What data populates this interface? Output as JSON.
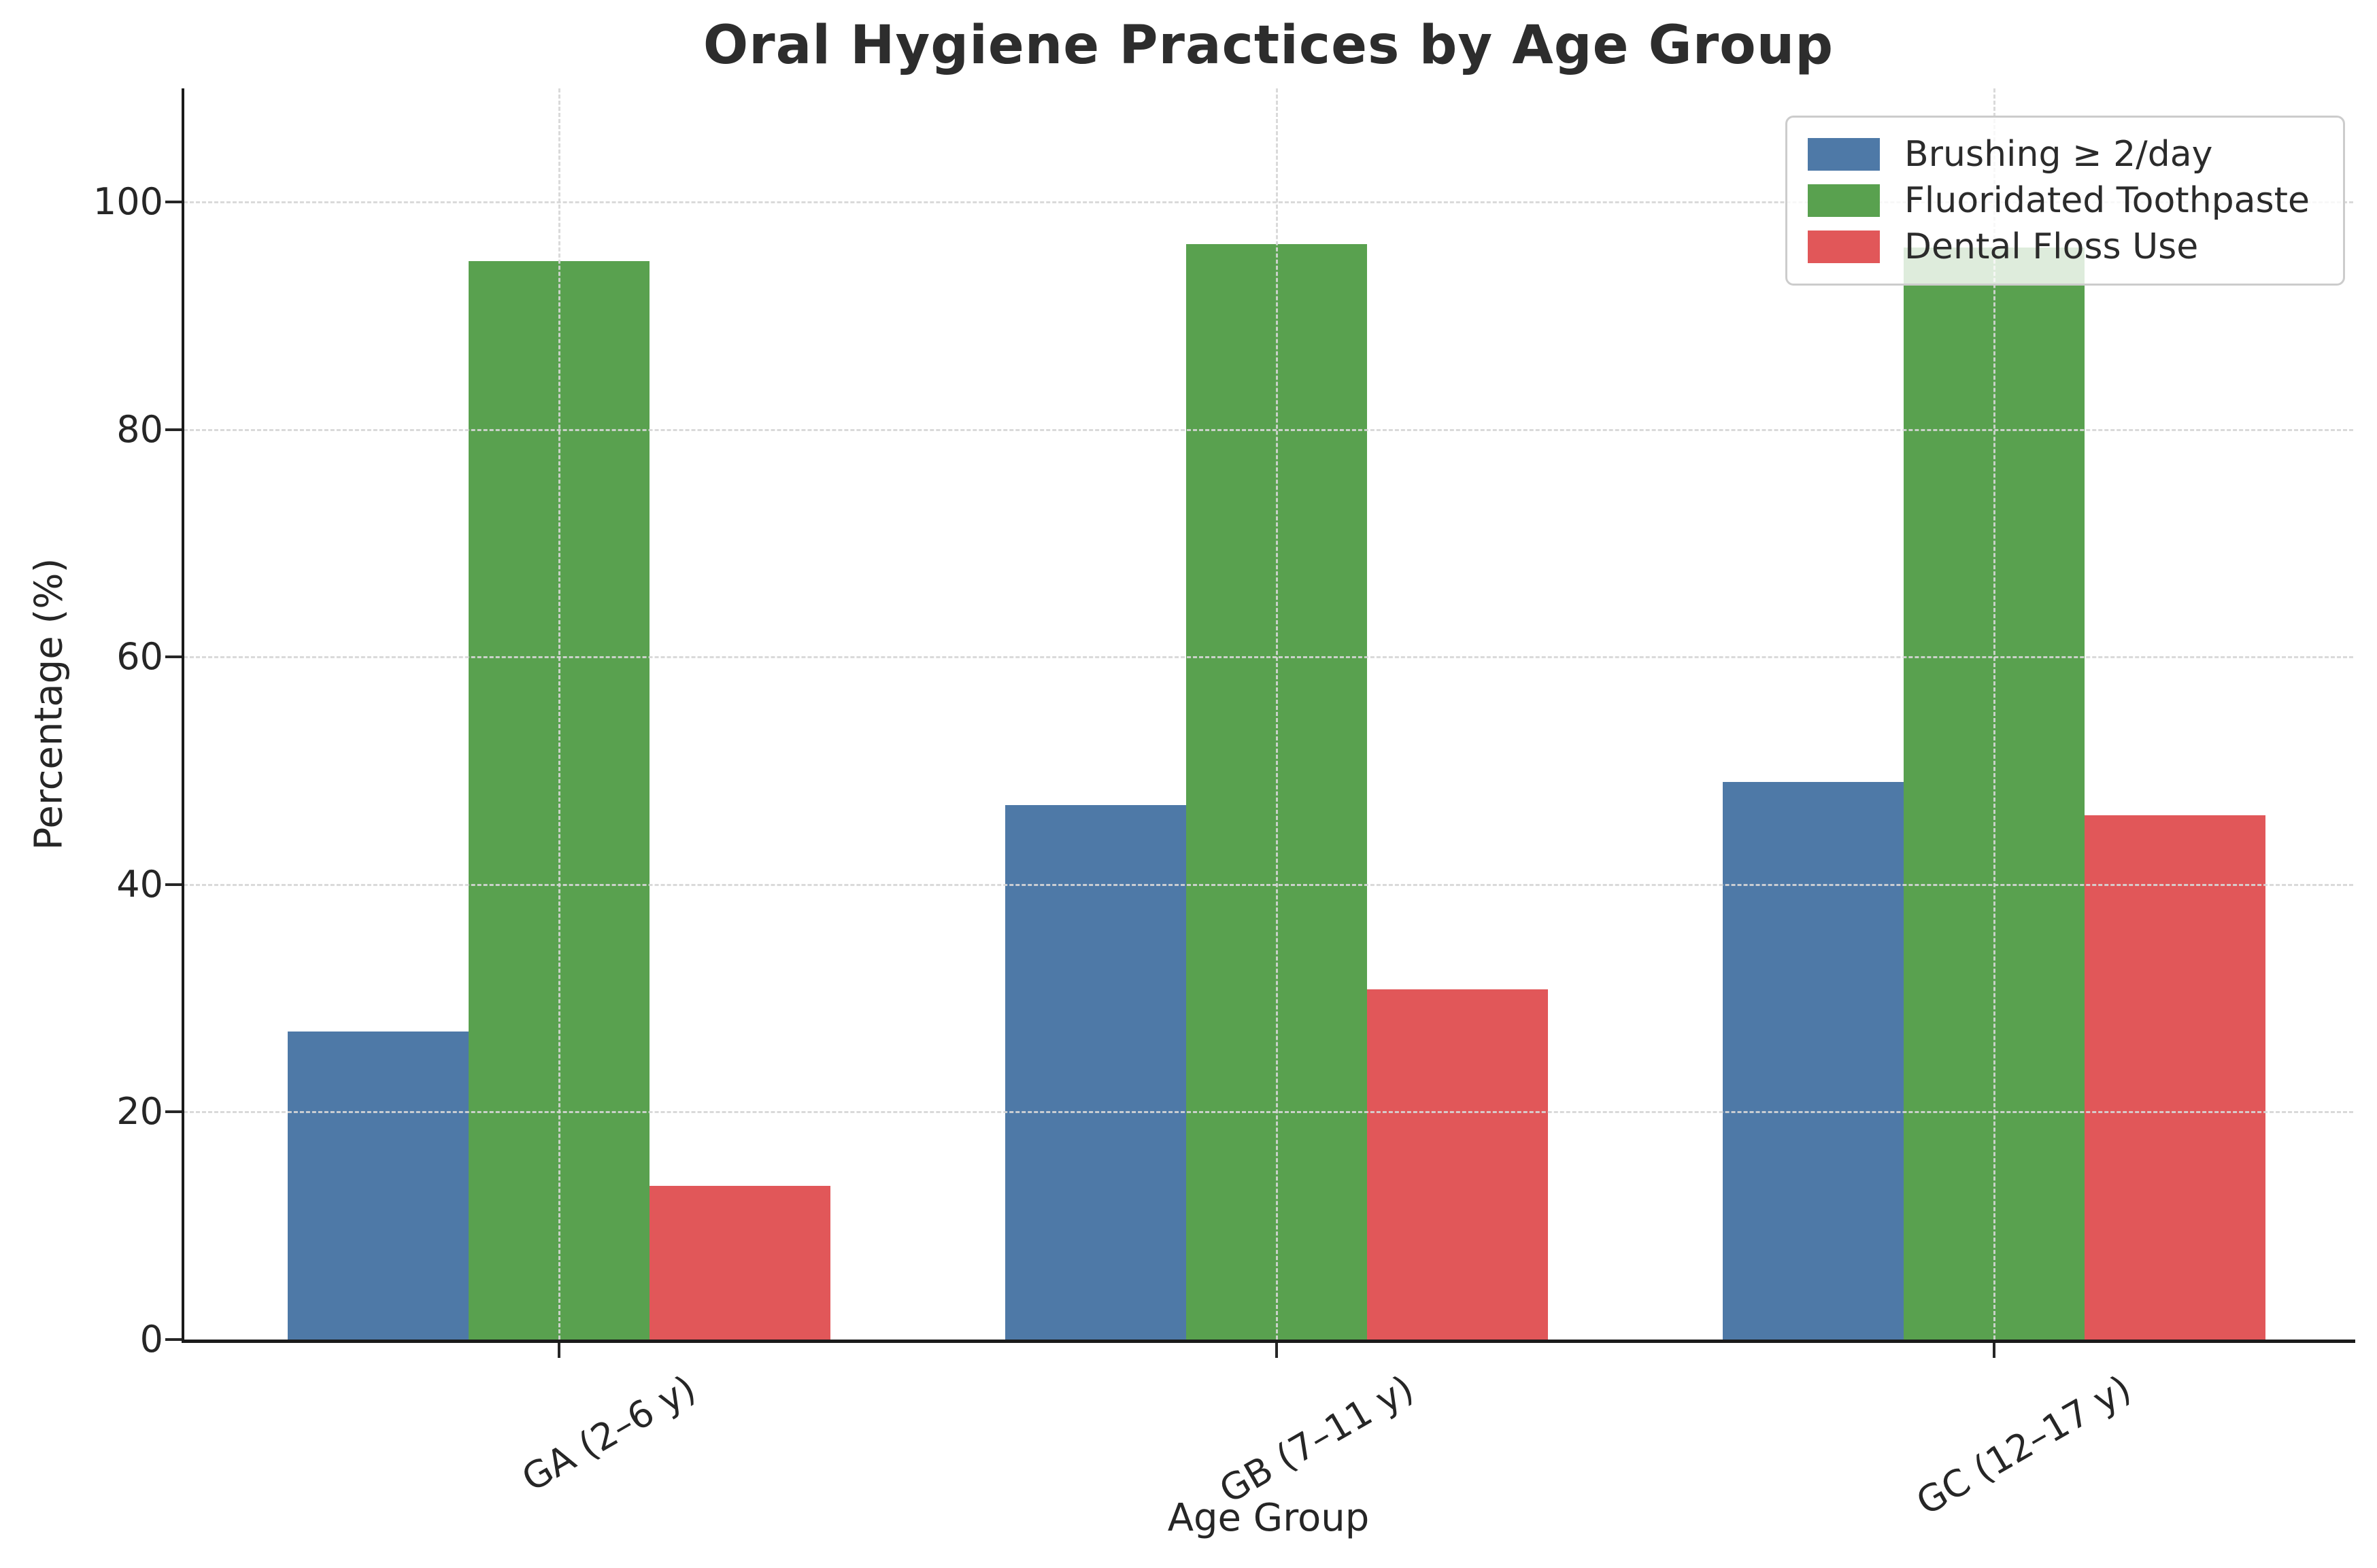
{
  "figure": {
    "title": "Oral Hygiene Practices by Age Group",
    "xlabel": "Age Group",
    "ylabel": "Percentage (%)"
  },
  "chart_data": {
    "type": "bar",
    "title": "Oral Hygiene Practices by Age Group",
    "xlabel": "Age Group",
    "ylabel": "Percentage (%)",
    "categories": [
      "GA (2–6 y)",
      "GB (7–11 y)",
      "GC (12–17 y)"
    ],
    "series": [
      {
        "name": "Brushing ≥ 2/day",
        "color": "#4E79A7",
        "values": [
          27.1,
          47.0,
          49.0
        ]
      },
      {
        "name": "Fluoridated Toothpaste",
        "color": "#59A14F",
        "values": [
          94.8,
          96.3,
          96.0
        ]
      },
      {
        "name": "Dental Floss Use",
        "color": "#E15759",
        "values": [
          13.5,
          30.8,
          46.1
        ]
      }
    ],
    "yticks": [
      0,
      20,
      40,
      60,
      80,
      100
    ],
    "ylim": [
      0,
      110
    ],
    "grid": "dashed horizontal and vertical gridlines, drawn over bars",
    "legend_position": "upper right",
    "background_color": "#ffffff",
    "text_color": "#262626"
  }
}
